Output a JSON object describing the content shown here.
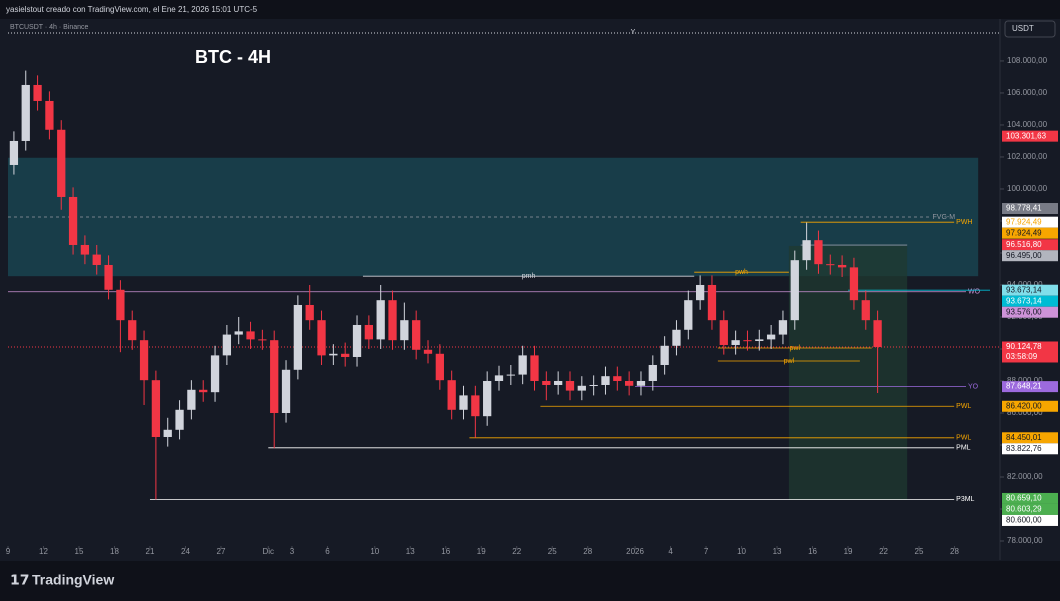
{
  "header": {
    "credit": "yasielstout creado con TradingView.com, el Ene 21, 2026 15:01 UTC-5",
    "symbol": "BTCUSDT · 4h · Binance",
    "currency": "USDT",
    "marker": "Y",
    "brand": "TradingView"
  },
  "chart_data": {
    "type": "candlestick",
    "title": "BTC - 4H",
    "up_color": "#d1d4dc",
    "down_color": "#f23645",
    "xlim": [
      "2025-11-09",
      "2026-01-31"
    ],
    "ylim": [
      77750,
      110560
    ],
    "xticks": [
      {
        "value": "2025-11-09",
        "label": "9"
      },
      {
        "value": "2025-11-12",
        "label": "12"
      },
      {
        "value": "2025-11-15",
        "label": "15"
      },
      {
        "value": "2025-11-18",
        "label": "18"
      },
      {
        "value": "2025-11-21",
        "label": "21"
      },
      {
        "value": "2025-11-24",
        "label": "24"
      },
      {
        "value": "2025-11-27",
        "label": "27"
      },
      {
        "value": "2025-12-01",
        "label": "Dic"
      },
      {
        "value": "2025-12-03",
        "label": "3"
      },
      {
        "value": "2025-12-06",
        "label": "6"
      },
      {
        "value": "2025-12-10",
        "label": "10"
      },
      {
        "value": "2025-12-13",
        "label": "13"
      },
      {
        "value": "2025-12-16",
        "label": "16"
      },
      {
        "value": "2025-12-19",
        "label": "19"
      },
      {
        "value": "2025-12-22",
        "label": "22"
      },
      {
        "value": "2025-12-25",
        "label": "25"
      },
      {
        "value": "2025-12-28",
        "label": "28"
      },
      {
        "value": "2026-01-01",
        "label": "2026"
      },
      {
        "value": "2026-01-04",
        "label": "4"
      },
      {
        "value": "2026-01-07",
        "label": "7"
      },
      {
        "value": "2026-01-10",
        "label": "10"
      },
      {
        "value": "2026-01-13",
        "label": "13"
      },
      {
        "value": "2026-01-16",
        "label": "16"
      },
      {
        "value": "2026-01-19",
        "label": "19"
      },
      {
        "value": "2026-01-22",
        "label": "22"
      },
      {
        "value": "2026-01-25",
        "label": "25"
      },
      {
        "value": "2026-01-28",
        "label": "28"
      }
    ],
    "yticks": [
      {
        "value": 108000,
        "label": "108.000,00"
      },
      {
        "value": 106000,
        "label": "106.000,00"
      },
      {
        "value": 104000,
        "label": "104.000,00"
      },
      {
        "value": 102000,
        "label": "102.000,00"
      },
      {
        "value": 100000,
        "label": "100.000,00"
      },
      {
        "value": 98000,
        "label": "98.000,00"
      },
      {
        "value": 96000,
        "label": "96.000,00"
      },
      {
        "value": 94000,
        "label": "94.000,00"
      },
      {
        "value": 92000,
        "label": "92.000,00"
      },
      {
        "value": 90000,
        "label": "90.000,00"
      },
      {
        "value": 88000,
        "label": "88.000,00"
      },
      {
        "value": 86000,
        "label": "86.000,00"
      },
      {
        "value": 84000,
        "label": "84.000,00"
      },
      {
        "value": 82000,
        "label": "82.000,00"
      },
      {
        "value": 80000,
        "label": "80.000,00"
      },
      {
        "value": 78000,
        "label": "78.000,00"
      }
    ],
    "x": [
      "2025-11-09",
      "2025-11-10",
      "2025-11-11",
      "2025-11-12",
      "2025-11-13",
      "2025-11-14",
      "2025-11-15",
      "2025-11-16",
      "2025-11-17",
      "2025-11-18",
      "2025-11-19",
      "2025-11-20",
      "2025-11-21",
      "2025-11-22",
      "2025-11-23",
      "2025-11-24",
      "2025-11-25",
      "2025-11-26",
      "2025-11-27",
      "2025-11-28",
      "2025-11-29",
      "2025-11-30",
      "2025-12-01",
      "2025-12-02",
      "2025-12-03",
      "2025-12-04",
      "2025-12-05",
      "2025-12-06",
      "2025-12-07",
      "2025-12-08",
      "2025-12-09",
      "2025-12-10",
      "2025-12-11",
      "2025-12-12",
      "2025-12-13",
      "2025-12-14",
      "2025-12-15",
      "2025-12-16",
      "2025-12-17",
      "2025-12-18",
      "2025-12-19",
      "2025-12-20",
      "2025-12-21",
      "2025-12-22",
      "2025-12-23",
      "2025-12-24",
      "2025-12-25",
      "2025-12-26",
      "2025-12-27",
      "2025-12-28",
      "2025-12-29",
      "2025-12-30",
      "2025-12-31",
      "2026-01-01",
      "2026-01-02",
      "2026-01-03",
      "2026-01-04",
      "2026-01-05",
      "2026-01-06",
      "2026-01-07",
      "2026-01-08",
      "2026-01-09",
      "2026-01-10",
      "2026-01-11",
      "2026-01-12",
      "2026-01-13",
      "2026-01-14",
      "2026-01-15",
      "2026-01-16",
      "2026-01-17",
      "2026-01-18",
      "2026-01-19",
      "2026-01-20",
      "2026-01-21"
    ],
    "open": [
      101500,
      103000,
      106500,
      105500,
      103700,
      99500,
      96500,
      95900,
      95250,
      93700,
      91800,
      90550,
      88050,
      84500,
      84950,
      86200,
      87450,
      87300,
      89600,
      90900,
      91100,
      90600,
      90550,
      86000,
      88700,
      92750,
      91800,
      89600,
      89700,
      89500,
      91500,
      90600,
      93050,
      90550,
      91800,
      89950,
      89700,
      88050,
      86200,
      87100,
      85800,
      88000,
      88350,
      88400,
      89600,
      88000,
      87750,
      88000,
      87400,
      87700,
      87750,
      88300,
      88000,
      87700,
      88000,
      89000,
      90200,
      91200,
      93050,
      94000,
      91800,
      90250,
      90550,
      90500,
      90600,
      90900,
      91800,
      95550,
      96800,
      95300,
      95250,
      95100,
      93050,
      91800
    ],
    "high": [
      103600,
      107400,
      107100,
      106100,
      104300,
      100100,
      97100,
      96500,
      95850,
      94300,
      92400,
      91150,
      88650,
      85700,
      86800,
      88050,
      88050,
      90200,
      91500,
      92000,
      91700,
      91200,
      91150,
      89300,
      93350,
      94000,
      92400,
      90300,
      90400,
      92100,
      92100,
      94000,
      93650,
      92900,
      92400,
      90550,
      90300,
      88650,
      87700,
      87700,
      88600,
      88950,
      89000,
      90200,
      90200,
      88600,
      88600,
      88600,
      88300,
      88350,
      88900,
      88900,
      88600,
      88600,
      89600,
      90800,
      91800,
      93650,
      94600,
      94600,
      92400,
      91150,
      91150,
      91200,
      91500,
      92400,
      96150,
      97900,
      97400,
      95900,
      95850,
      95700,
      93650,
      92400
    ],
    "low": [
      100900,
      102400,
      104900,
      103100,
      98700,
      95900,
      95300,
      94650,
      93100,
      89800,
      89950,
      86500,
      80600,
      83900,
      84350,
      85600,
      86700,
      86700,
      89000,
      90300,
      90000,
      89950,
      83800,
      85400,
      88100,
      91200,
      89000,
      89000,
      88900,
      88900,
      90000,
      90000,
      89950,
      89950,
      89350,
      89100,
      87450,
      85600,
      85600,
      84450,
      85200,
      87400,
      87750,
      87800,
      87400,
      86800,
      87150,
      86800,
      86800,
      87100,
      87150,
      87400,
      87100,
      87100,
      87400,
      88400,
      89600,
      90600,
      92450,
      91200,
      89650,
      89650,
      89900,
      89900,
      90000,
      90300,
      91200,
      94950,
      94700,
      94650,
      94500,
      92450,
      91200,
      87250
    ],
    "close": [
      103000,
      106500,
      105500,
      103700,
      99500,
      96500,
      95900,
      95250,
      93700,
      91800,
      90550,
      88050,
      84500,
      84950,
      86200,
      87450,
      87300,
      89600,
      90900,
      91100,
      90600,
      90550,
      86000,
      88700,
      92750,
      91800,
      89600,
      89700,
      89500,
      91500,
      90600,
      93050,
      90550,
      91800,
      89950,
      89700,
      88050,
      86200,
      87100,
      85800,
      88000,
      88350,
      88400,
      89600,
      88000,
      87750,
      88000,
      87400,
      87700,
      87750,
      88300,
      88000,
      87700,
      88000,
      89000,
      90200,
      91200,
      93050,
      94000,
      91800,
      90250,
      90550,
      90500,
      90600,
      90900,
      91800,
      95550,
      96800,
      95300,
      95250,
      95100,
      93050,
      91800,
      90125
    ],
    "zones": [
      {
        "top": 101950,
        "bottom": 94550,
        "start": "2025-11-09",
        "end": "2026-01-30",
        "color": "#1a4a55"
      },
      {
        "top": 96440,
        "bottom": 80560,
        "start": "2026-01-14",
        "end": "2026-01-24",
        "color": "#1f3a30"
      }
    ],
    "levels": [
      {
        "label": "FVG-M",
        "value": 98250,
        "color": "#9598a1",
        "start": "2025-11-09",
        "end": "2026-01-28",
        "label_pos": "end",
        "dashed": true
      },
      {
        "label": "PWH",
        "value": 97924.49,
        "color": "#f7a600",
        "start": "2026-01-15",
        "end": "2026-01-30",
        "label_pos": "end"
      },
      {
        "label": "pmh",
        "value": 94550,
        "color": "#d1d4dc",
        "start": "2025-12-09",
        "end": "2026-01-06",
        "label_pos": "middle"
      },
      {
        "label": "pwh",
        "value": 94800,
        "color": "#f7a600",
        "start": "2026-01-06",
        "end": "2026-01-14",
        "label_pos": "middle"
      },
      {
        "label": "WO",
        "value": 93576,
        "color": "#ce93d8",
        "start": "2025-11-09",
        "end": "2026-01-31",
        "label_pos": "end"
      },
      {
        "value": 93673.14,
        "color": "#00bcd4",
        "start": "2026-01-19",
        "end": "2026-01-31"
      },
      {
        "value": 96495,
        "color": "#9598a1",
        "start": "2026-01-15",
        "end": "2026-01-24"
      },
      {
        "label": "pwl",
        "value": 90060,
        "color": "#f7a600",
        "start": "2026-01-08",
        "end": "2026-01-21",
        "label_pos": "middle"
      },
      {
        "label": "pwl",
        "value": 89250,
        "color": "#f7a600",
        "start": "2026-01-08",
        "end": "2026-01-20",
        "label_pos": "middle"
      },
      {
        "label": "YO",
        "value": 87648.21,
        "color": "#9c6ade",
        "start": "2026-01-01",
        "end": "2026-01-31",
        "label_pos": "end"
      },
      {
        "label": "PWL",
        "value": 86420,
        "color": "#f7a600",
        "start": "2025-12-24",
        "end": "2026-01-30",
        "label_pos": "end"
      },
      {
        "label": "PWL",
        "value": 84450.01,
        "color": "#f7a600",
        "start": "2025-12-18",
        "end": "2026-01-30",
        "label_pos": "end"
      },
      {
        "label": "PML",
        "value": 83822.76,
        "color": "#ffffff",
        "start": "2025-12-01",
        "end": "2026-01-30",
        "label_pos": "end"
      },
      {
        "label": "P3ML",
        "value": 80600,
        "color": "#ffffff",
        "start": "2025-11-21",
        "end": "2026-01-30",
        "label_pos": "end"
      }
    ],
    "last_price": {
      "value": 90124.78,
      "label": "90.124,78",
      "countdown": "03:58:09",
      "color": "#f23645"
    },
    "price_tags": [
      {
        "value": 103301.63,
        "label": "103.301,63",
        "bg": "#f23645",
        "fg": "#ffffff"
      },
      {
        "value": 98778.41,
        "label": "98.778,41",
        "bg": "#787b86",
        "fg": "#ffffff"
      },
      {
        "value": 97924.49,
        "label": "97.924,49",
        "bg": "#ffffff",
        "fg": "#f7a600"
      },
      {
        "value": 97924.49,
        "label": "97.924,49",
        "bg": "#f7a600",
        "fg": "#131722"
      },
      {
        "value": 96516.8,
        "label": "96.516,80",
        "bg": "#f23645",
        "fg": "#ffffff"
      },
      {
        "value": 96495,
        "label": "96.495,00",
        "bg": "#b2b5be",
        "fg": "#131722"
      },
      {
        "value": 93673.14,
        "label": "93.673,14",
        "bg": "#80deea",
        "fg": "#131722"
      },
      {
        "value": 93673.14,
        "label": "93.673,14",
        "bg": "#00bcd4",
        "fg": "#ffffff"
      },
      {
        "value": 93576,
        "label": "93.576,00",
        "bg": "#ce93d8",
        "fg": "#131722"
      },
      {
        "value": 87648.21,
        "label": "87.648,21",
        "bg": "#9c6ade",
        "fg": "#ffffff"
      },
      {
        "value": 86420,
        "label": "86.420,00",
        "bg": "#f7a600",
        "fg": "#131722"
      },
      {
        "value": 84450.01,
        "label": "84.450,01",
        "bg": "#f7a600",
        "fg": "#131722"
      },
      {
        "value": 83822.76,
        "label": "83.822,76",
        "bg": "#ffffff",
        "fg": "#131722"
      },
      {
        "value": 80659.1,
        "label": "80.659,10",
        "bg": "#4caf50",
        "fg": "#ffffff"
      },
      {
        "value": 80603.29,
        "label": "80.603,29",
        "bg": "#4caf50",
        "fg": "#ffffff"
      },
      {
        "value": 80600,
        "label": "80.600,00",
        "bg": "#ffffff",
        "fg": "#131722"
      }
    ]
  }
}
